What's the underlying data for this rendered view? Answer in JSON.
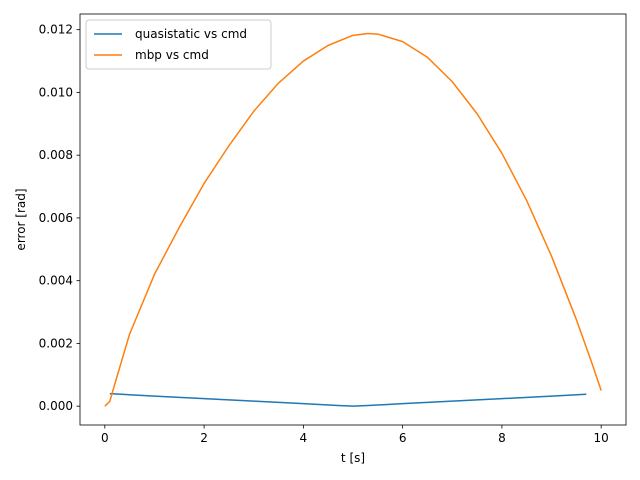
{
  "chart_data": {
    "type": "line",
    "title": "",
    "xlabel": "t [s]",
    "ylabel": "error [rad]",
    "xlim": [
      -0.5,
      10.5
    ],
    "ylim": [
      -0.0006,
      0.0125
    ],
    "xticks": [
      0,
      2,
      4,
      6,
      8,
      10
    ],
    "xtick_labels": [
      "0",
      "2",
      "4",
      "6",
      "8",
      "10"
    ],
    "yticks": [
      0,
      0.002,
      0.004,
      0.006,
      0.008,
      0.01,
      0.012
    ],
    "ytick_labels": [
      "0.000",
      "0.002",
      "0.004",
      "0.006",
      "0.008",
      "0.010",
      "0.012"
    ],
    "grid": false,
    "legend_position": "top-left",
    "series": [
      {
        "name": "quasistatic vs cmd",
        "color": "#1f77b4",
        "x": [
          0.1,
          1,
          2,
          3,
          4,
          4.7,
          5.0,
          5.3,
          6,
          7,
          8,
          9,
          9.7
        ],
        "y": [
          0.0004,
          0.00032,
          0.00024,
          0.00016,
          8e-05,
          2e-05,
          0.0,
          2e-05,
          8e-05,
          0.00016,
          0.00024,
          0.00032,
          0.00038
        ]
      },
      {
        "name": "mbp vs cmd",
        "color": "#ff7f0e",
        "x": [
          0.0,
          0.1,
          0.2,
          0.5,
          1.0,
          1.5,
          2.0,
          2.5,
          3.0,
          3.5,
          4.0,
          4.5,
          5.0,
          5.3,
          5.5,
          6.0,
          6.5,
          7.0,
          7.5,
          8.0,
          8.5,
          9.0,
          9.5,
          9.8,
          10.0
        ],
        "y": [
          0.0,
          0.00015,
          0.0007,
          0.0023,
          0.0042,
          0.0057,
          0.0071,
          0.0083,
          0.0094,
          0.0103,
          0.011,
          0.0115,
          0.01182,
          0.01188,
          0.01186,
          0.01162,
          0.01112,
          0.01034,
          0.00932,
          0.00806,
          0.00655,
          0.00478,
          0.00276,
          0.00143,
          0.0005
        ]
      }
    ]
  }
}
